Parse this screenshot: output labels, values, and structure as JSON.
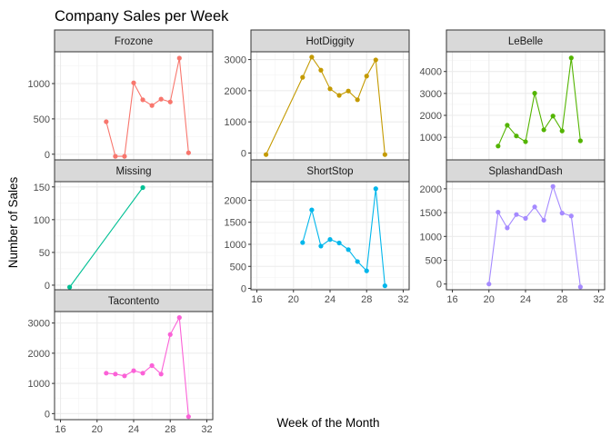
{
  "chart_data": {
    "type": "line",
    "title": "Company Sales per Week",
    "xlabel": "Week of the Month",
    "ylabel": "Number of Sales",
    "xlim": [
      15.35,
      32.65
    ],
    "x_ticks": [
      16,
      20,
      24,
      28,
      32
    ],
    "grid": true,
    "legend": "none",
    "facets": [
      {
        "name": "Frozone",
        "color": "#F8766D",
        "ylim": [
          -80,
          1450
        ],
        "y_ticks": [
          0,
          500,
          1000
        ],
        "x": [
          21,
          22,
          23,
          24,
          25,
          26,
          27,
          28,
          29,
          30
        ],
        "values": [
          460,
          -30,
          -30,
          1010,
          770,
          690,
          780,
          740,
          1360,
          20
        ]
      },
      {
        "name": "HotDiggity",
        "color": "#C49A00",
        "ylim": [
          -220,
          3250
        ],
        "y_ticks": [
          0,
          1000,
          2000,
          3000
        ],
        "x": [
          17,
          21,
          22,
          23,
          24,
          25,
          26,
          27,
          28,
          29,
          30
        ],
        "values": [
          -50,
          2430,
          3080,
          2660,
          2060,
          1850,
          1990,
          1710,
          2470,
          2990,
          -50
        ]
      },
      {
        "name": "LeBelle",
        "color": "#53B400",
        "ylim": [
          -30,
          4900
        ],
        "y_ticks": [
          1000,
          2000,
          3000,
          4000
        ],
        "x": [
          21,
          22,
          23,
          24,
          25,
          26,
          27,
          28,
          29,
          30
        ],
        "values": [
          600,
          1550,
          1060,
          800,
          3010,
          1340,
          1970,
          1290,
          4620,
          840
        ]
      },
      {
        "name": "Missing",
        "color": "#00C094",
        "ylim": [
          -7,
          158
        ],
        "y_ticks": [
          0,
          50,
          100,
          150
        ],
        "x": [
          17,
          25
        ],
        "values": [
          -3,
          149
        ]
      },
      {
        "name": "ShortStop",
        "color": "#00B6EB",
        "ylim": [
          -30,
          2420
        ],
        "y_ticks": [
          0,
          500,
          1000,
          1500,
          2000
        ],
        "x": [
          21,
          22,
          23,
          24,
          25,
          26,
          27,
          28,
          29,
          30
        ],
        "values": [
          1040,
          1780,
          960,
          1110,
          1030,
          880,
          610,
          400,
          2260,
          60
        ]
      },
      {
        "name": "SplashandDash",
        "color": "#A58AFF",
        "ylim": [
          -120,
          2150
        ],
        "y_ticks": [
          0,
          500,
          1000,
          1500,
          2000
        ],
        "x": [
          20,
          21,
          22,
          23,
          24,
          25,
          26,
          27,
          28,
          29,
          30
        ],
        "values": [
          0,
          1510,
          1180,
          1460,
          1380,
          1620,
          1340,
          2050,
          1490,
          1430,
          -60
        ]
      },
      {
        "name": "Tacontento",
        "color": "#FB61D7",
        "ylim": [
          -200,
          3380
        ],
        "y_ticks": [
          0,
          1000,
          2000,
          3000
        ],
        "x": [
          21,
          22,
          23,
          24,
          25,
          26,
          27,
          28,
          29,
          30
        ],
        "values": [
          1340,
          1310,
          1250,
          1420,
          1340,
          1590,
          1310,
          2620,
          3180,
          -100
        ]
      }
    ]
  }
}
